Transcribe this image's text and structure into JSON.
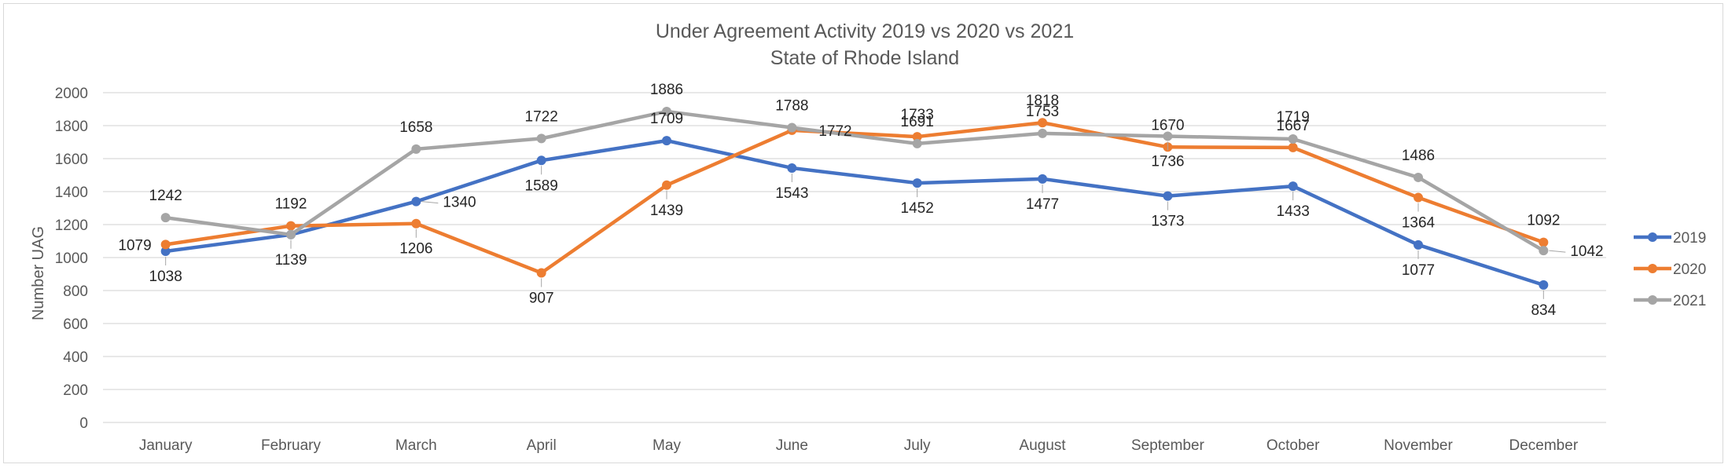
{
  "chart_data": {
    "type": "line",
    "title": "Under Agreement Activity 2019 vs 2020 vs 2021",
    "subtitle": "State of Rhode Island",
    "xlabel": "",
    "ylabel": "Number UAG",
    "ylim": [
      0,
      2000
    ],
    "yticks": [
      "0",
      "200",
      "400",
      "600",
      "800",
      "1000",
      "1200",
      "1400",
      "1600",
      "1800",
      "2000"
    ],
    "grid": true,
    "legend_position": "right",
    "categories": [
      "January",
      "February",
      "March",
      "April",
      "May",
      "June",
      "July",
      "August",
      "September",
      "October",
      "November",
      "December"
    ],
    "series": [
      {
        "name": "2019",
        "color": "#4472c4",
        "values": [
          1038,
          1139,
          1340,
          1589,
          1709,
          1543,
          1452,
          1477,
          1373,
          1433,
          1077,
          834
        ],
        "label_placement": [
          "below",
          "below",
          "right",
          "below",
          "above",
          "below",
          "below",
          "below",
          "below",
          "below",
          "below",
          "below"
        ]
      },
      {
        "name": "2020",
        "color": "#ed7d31",
        "values": [
          1079,
          1192,
          1206,
          907,
          1439,
          1772,
          1733,
          1818,
          1670,
          1667,
          1364,
          1092
        ],
        "label_placement": [
          "left",
          "above",
          "below",
          "below",
          "below",
          "right",
          "above",
          "above",
          "above",
          "above",
          "below",
          "above"
        ]
      },
      {
        "name": "2021",
        "color": "#a5a5a5",
        "values": [
          1242,
          1139,
          1658,
          1722,
          1886,
          1788,
          1691,
          1753,
          1736,
          1719,
          1486,
          1042
        ],
        "label_placement": [
          "above",
          "hidden",
          "above",
          "above",
          "above",
          "above",
          "above",
          "above",
          "below",
          "above",
          "above",
          "right"
        ]
      }
    ]
  }
}
